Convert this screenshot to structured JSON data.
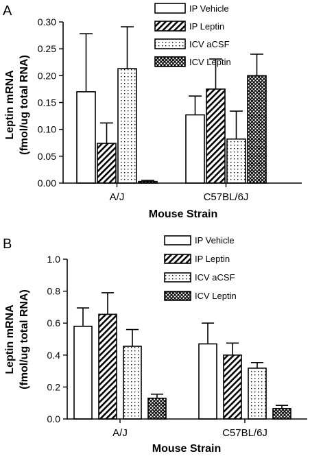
{
  "chart_data": [
    {
      "panel": "A",
      "type": "bar",
      "categories": [
        "A/J",
        "C57BL/6J"
      ],
      "series": [
        {
          "name": "IP Vehicle",
          "pattern": "open",
          "values": [
            0.17,
            0.127
          ],
          "errors": [
            0.108,
            0.035
          ]
        },
        {
          "name": "IP Leptin",
          "pattern": "diagonal",
          "values": [
            0.074,
            0.175
          ],
          "errors": [
            0.038,
            0.056
          ]
        },
        {
          "name": "ICV aCSF",
          "pattern": "dotted",
          "values": [
            0.213,
            0.082
          ],
          "errors": [
            0.078,
            0.052
          ]
        },
        {
          "name": "ICV Leptin",
          "pattern": "crosshatch",
          "values": [
            0.003,
            0.2
          ],
          "errors": [
            0.002,
            0.04
          ]
        }
      ],
      "yticks": [
        "0.00",
        "0.05",
        "0.10",
        "0.15",
        "0.20",
        "0.25",
        "0.30"
      ],
      "ylim": [
        0,
        0.3
      ],
      "ylabel_line1": "Leptin mRNA",
      "ylabel_line2": "(fmol/ug total RNA)",
      "xlabel": "Mouse Strain",
      "legend_position": "top-right",
      "grid": false
    },
    {
      "panel": "B",
      "type": "bar",
      "categories": [
        "A/J",
        "C57BL/6J"
      ],
      "series": [
        {
          "name": "IP Vehicle",
          "pattern": "open",
          "values": [
            0.58,
            0.47
          ],
          "errors": [
            0.115,
            0.13
          ]
        },
        {
          "name": "IP Leptin",
          "pattern": "diagonal",
          "values": [
            0.655,
            0.4
          ],
          "errors": [
            0.135,
            0.075
          ]
        },
        {
          "name": "ICV aCSF",
          "pattern": "dotted",
          "values": [
            0.455,
            0.318
          ],
          "errors": [
            0.105,
            0.035
          ]
        },
        {
          "name": "ICV Leptin",
          "pattern": "crosshatch",
          "values": [
            0.13,
            0.065
          ],
          "errors": [
            0.025,
            0.02
          ]
        }
      ],
      "yticks": [
        "0.0",
        "0.2",
        "0.4",
        "0.6",
        "0.8",
        "1.0"
      ],
      "ylim": [
        0,
        1.0
      ],
      "ylabel_line1": "Leptin mRNA",
      "ylabel_line2": "(fmol/ug total RNA)",
      "xlabel": "Mouse Strain",
      "legend_position": "top-right",
      "grid": false
    }
  ],
  "colors": {
    "stroke": "#000000",
    "fill": "#ffffff"
  }
}
